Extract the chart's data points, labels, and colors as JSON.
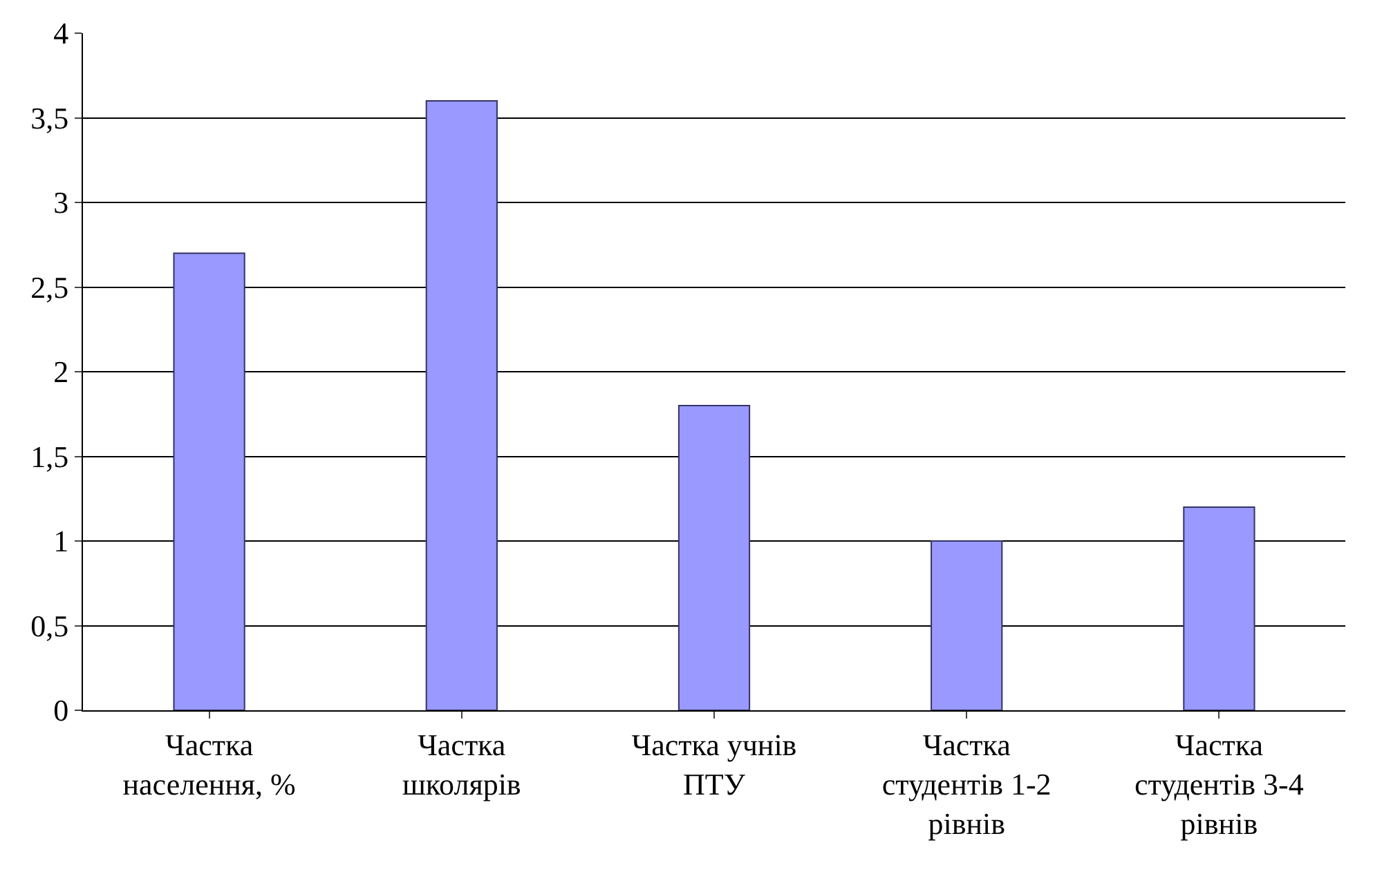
{
  "chart_data": {
    "type": "bar",
    "categories": [
      "Частка населення, %",
      "Частка школярів",
      "Частка учнів ПТУ",
      "Частка студентів 1-2 рівнів",
      "Частка студентів 3-4 рівнів"
    ],
    "values": [
      2.7,
      3.6,
      1.8,
      1.0,
      1.2
    ],
    "color": "#9999ff",
    "ylim": [
      0,
      4
    ],
    "yticks": [
      0,
      {
        "value": 0.5,
        "label": "0,5"
      },
      1,
      {
        "value": 1.5,
        "label": "1,5"
      },
      2,
      {
        "value": 2.5,
        "label": "2,5"
      },
      3,
      {
        "value": 3.5,
        "label": "3,5"
      },
      4
    ],
    "grid": "y"
  }
}
